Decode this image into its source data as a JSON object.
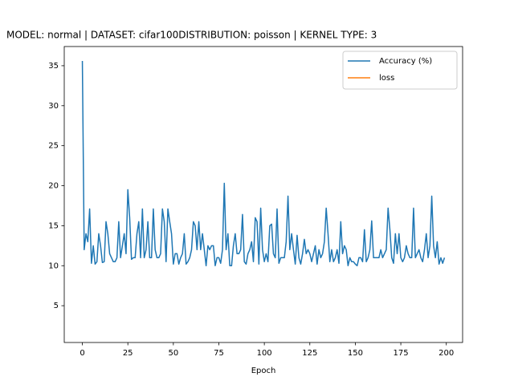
{
  "chart_data": {
    "type": "line",
    "title": "MODEL: normal | DATASET: cifar100DISTRIBUTION: poisson | KERNEL TYPE: 3",
    "xlabel": "Epoch",
    "x": [
      0,
      1,
      2,
      3,
      4,
      5,
      6,
      7,
      8,
      9,
      10,
      11,
      12,
      13,
      14,
      15,
      16,
      17,
      18,
      19,
      20,
      21,
      22,
      23,
      24,
      25,
      26,
      27,
      28,
      29,
      30,
      31,
      32,
      33,
      34,
      35,
      36,
      37,
      38,
      39,
      40,
      41,
      42,
      43,
      44,
      45,
      46,
      47,
      48,
      49,
      50,
      51,
      52,
      53,
      54,
      55,
      56,
      57,
      58,
      59,
      60,
      61,
      62,
      63,
      64,
      65,
      66,
      67,
      68,
      69,
      70,
      71,
      72,
      73,
      74,
      75,
      76,
      77,
      78,
      79,
      80,
      81,
      82,
      83,
      84,
      85,
      86,
      87,
      88,
      89,
      90,
      91,
      92,
      93,
      94,
      95,
      96,
      97,
      98,
      99,
      100,
      101,
      102,
      103,
      104,
      105,
      106,
      107,
      108,
      109,
      110,
      111,
      112,
      113,
      114,
      115,
      116,
      117,
      118,
      119,
      120,
      121,
      122,
      123,
      124,
      125,
      126,
      127,
      128,
      129,
      130,
      131,
      132,
      133,
      134,
      135,
      136,
      137,
      138,
      139,
      140,
      141,
      142,
      143,
      144,
      145,
      146,
      147,
      148,
      149,
      150,
      151,
      152,
      153,
      154,
      155,
      156,
      157,
      158,
      159,
      160,
      161,
      162,
      163,
      164,
      165,
      166,
      167,
      168,
      169,
      170,
      171,
      172,
      173,
      174,
      175,
      176,
      177,
      178,
      179,
      180,
      181,
      182,
      183,
      184,
      185,
      186,
      187,
      188,
      189,
      190,
      191,
      192,
      193,
      194,
      195,
      196,
      197,
      198,
      199
    ],
    "series": [
      {
        "name": "Accuracy (%)",
        "color": "#1f77b4",
        "values": [
          35.6,
          12,
          14,
          13,
          17.1,
          10.3,
          12.5,
          10.2,
          10.5,
          14,
          12.5,
          10.4,
          10.5,
          15.5,
          14,
          11.5,
          11,
          10.5,
          10.5,
          11,
          15.5,
          11,
          12.5,
          14,
          11.5,
          19.5,
          16,
          10.8,
          11,
          11,
          14,
          15.5,
          11,
          17.1,
          11,
          12,
          15.5,
          11,
          11,
          17.1,
          12,
          11,
          11,
          11.5,
          17.1,
          15.5,
          10.5,
          17.1,
          15.5,
          14,
          10.2,
          11.5,
          11.5,
          10.2,
          11,
          11.5,
          14,
          10.2,
          10.5,
          11,
          12,
          15.5,
          15,
          12,
          15.5,
          12,
          14,
          12,
          10,
          12.5,
          12,
          12.5,
          12.5,
          10,
          11,
          11,
          10.3,
          12,
          20.3,
          12,
          14,
          10,
          10,
          12.5,
          14,
          11.5,
          11.5,
          12,
          16.4,
          10.5,
          10.2,
          11.5,
          12,
          13,
          10.5,
          16,
          15.5,
          10.2,
          17.2,
          12,
          10.5,
          11.5,
          10.5,
          15,
          15.2,
          11.5,
          11,
          17.1,
          10.3,
          11,
          11,
          11,
          13,
          18.7,
          12,
          14,
          12,
          10.2,
          13.8,
          11,
          10.2,
          11.5,
          13.3,
          11.5,
          12,
          11.5,
          10.5,
          11.5,
          12.5,
          10.2,
          12,
          11,
          11.5,
          13,
          17.2,
          14,
          10.5,
          12,
          10.5,
          11,
          12,
          10.3,
          15.5,
          11.5,
          12.5,
          12,
          10,
          11,
          10.5,
          10.5,
          10.2,
          10,
          11,
          11,
          10.5,
          14.5,
          10.5,
          11,
          12,
          15.6,
          11,
          11,
          11,
          11,
          12,
          11,
          11.5,
          12,
          17.2,
          14.5,
          11,
          10.3,
          14,
          11.5,
          14,
          11,
          10.5,
          11,
          12.5,
          11.5,
          11,
          11,
          17.2,
          11,
          11.5,
          12,
          11,
          10.5,
          12,
          14,
          11,
          12.5,
          18.7,
          12.5,
          11,
          13,
          10.2,
          11,
          10.3,
          11
        ]
      },
      {
        "name": "loss",
        "color": "#ff7f0e",
        "values": [
          null,
          null,
          null,
          null,
          null,
          null,
          null,
          null,
          null,
          null,
          null,
          null,
          null,
          null,
          null,
          null,
          null,
          null,
          null,
          null,
          null,
          null,
          null,
          null,
          null,
          null,
          null,
          null,
          null,
          null,
          null,
          null,
          null,
          null,
          null,
          null,
          null,
          null,
          null,
          null,
          null,
          null,
          null,
          null,
          null,
          null,
          null,
          null,
          null,
          null,
          null,
          null,
          null,
          null,
          null,
          null,
          null,
          null,
          null,
          null,
          null,
          null,
          null,
          null,
          null,
          null,
          null,
          null,
          null,
          null,
          null,
          null,
          null,
          null,
          null,
          null,
          null,
          null,
          null,
          null,
          null,
          null,
          null,
          null,
          null,
          null,
          null,
          null,
          null,
          null,
          null,
          null,
          null,
          null,
          null,
          null,
          null,
          null,
          null,
          null,
          null,
          null,
          null,
          null,
          null,
          null,
          null,
          null,
          null,
          null,
          null,
          null,
          null,
          null,
          null,
          null,
          null,
          null,
          null,
          null,
          null,
          null,
          null,
          null,
          null,
          null,
          null,
          null,
          null,
          null,
          null,
          null,
          null,
          null,
          null,
          null,
          null,
          null,
          null,
          null,
          null,
          null,
          null,
          null,
          null,
          null,
          null,
          null,
          null,
          null,
          null,
          null,
          null,
          null,
          null,
          null,
          null,
          null,
          null,
          null,
          null,
          null,
          null,
          null,
          null,
          null,
          null,
          null,
          null,
          null,
          null,
          null,
          null,
          null,
          null,
          null,
          null,
          null,
          null,
          null,
          null,
          null,
          null,
          null,
          null,
          null,
          null,
          null,
          null,
          null,
          null,
          null,
          null,
          null,
          null,
          null,
          null,
          null,
          null,
          null
        ]
      }
    ],
    "xlim": [
      -9.95,
      208.95
    ],
    "ylim": [
      0.4,
      37.4
    ],
    "xticks": [
      0,
      25,
      50,
      75,
      100,
      125,
      150,
      175,
      200
    ],
    "yticks": [
      5,
      10,
      15,
      20,
      25,
      30,
      35
    ],
    "legend": "upper right",
    "grid": false
  }
}
